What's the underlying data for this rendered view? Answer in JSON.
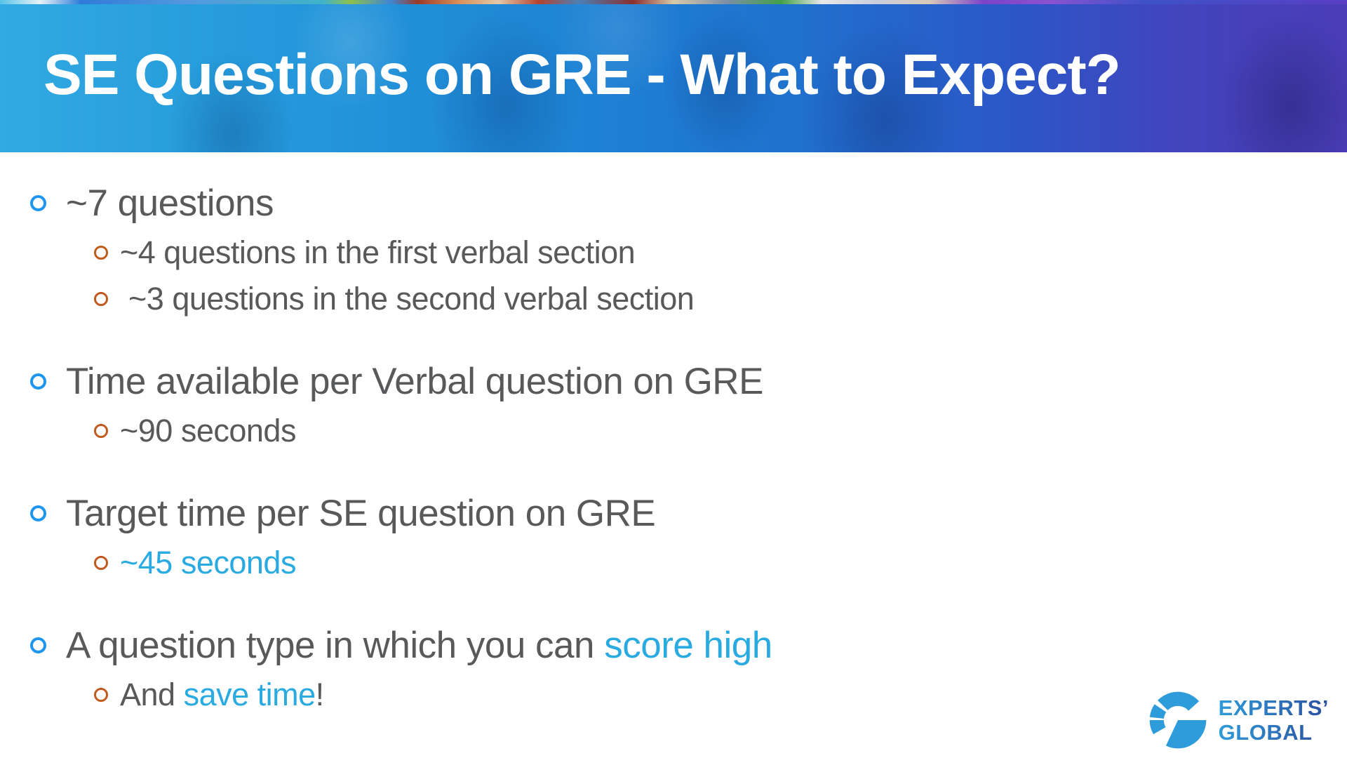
{
  "slide": {
    "title": "SE Questions on GRE - What to Expect?"
  },
  "content": {
    "groups": [
      {
        "heading": {
          "segments": [
            {
              "text": "~7 questions",
              "style": "gray"
            }
          ]
        },
        "subitems": [
          {
            "segments": [
              {
                "text": "~4 questions in the first verbal section",
                "style": "gray"
              }
            ]
          },
          {
            "segments": [
              {
                "text": " ~3 questions in the second verbal section",
                "style": "gray"
              }
            ]
          }
        ]
      },
      {
        "heading": {
          "segments": [
            {
              "text": "Time available per Verbal question on GRE",
              "style": "gray"
            }
          ]
        },
        "subitems": [
          {
            "segments": [
              {
                "text": "~90 seconds",
                "style": "gray"
              }
            ]
          }
        ]
      },
      {
        "heading": {
          "segments": [
            {
              "text": "Target time per SE question on GRE",
              "style": "gray"
            }
          ]
        },
        "subitems": [
          {
            "segments": [
              {
                "text": "~45 seconds",
                "style": "blue"
              }
            ]
          }
        ]
      },
      {
        "heading": {
          "segments": [
            {
              "text": "A question type in which you can ",
              "style": "gray"
            },
            {
              "text": "score high",
              "style": "blue"
            }
          ]
        },
        "subitems": [
          {
            "segments": [
              {
                "text": "And ",
                "style": "gray"
              },
              {
                "text": "save time",
                "style": "blue"
              },
              {
                "text": "!",
                "style": "gray"
              }
            ]
          }
        ]
      }
    ]
  },
  "logo": {
    "line1": "EXPERTS’",
    "line2": "GLOBAL"
  },
  "colors": {
    "level1_bullet": "#1E96F0",
    "level2_bullet": "#C05A1F",
    "body_text": "#58595B",
    "accent_text": "#29ABE2",
    "logo_blue_light": "#2F9BD9",
    "logo_blue_dark": "#2B4FA0",
    "header_left": "#31A9E1",
    "header_right": "#4A3DB8"
  }
}
